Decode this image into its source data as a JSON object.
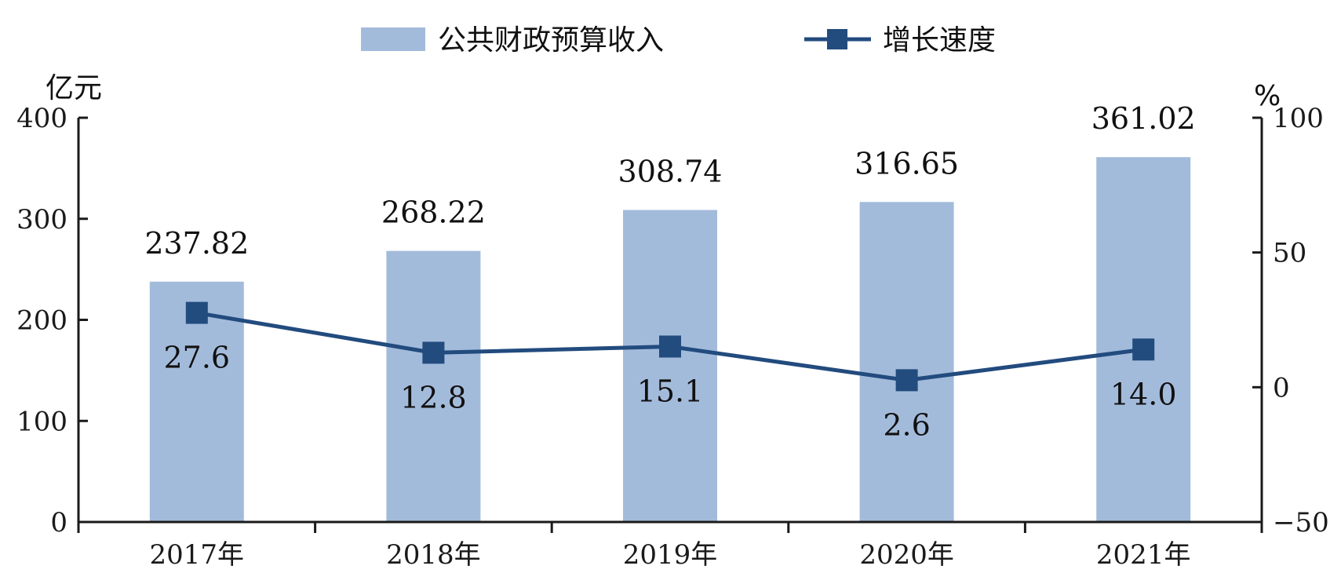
{
  "chart_data": {
    "type": "bar",
    "categories": [
      "2017年",
      "2018年",
      "2019年",
      "2020年",
      "2021年"
    ],
    "series": [
      {
        "name": "公共财政预算收入",
        "type": "bar",
        "axis": "left",
        "values": [
          237.82,
          268.22,
          308.74,
          316.65,
          361.02
        ],
        "labels": [
          "237.82",
          "268.22",
          "308.74",
          "316.65",
          "361.02"
        ],
        "color": "#a3bbdb"
      },
      {
        "name": "增长速度",
        "type": "line",
        "axis": "right",
        "values": [
          27.6,
          12.8,
          15.1,
          2.6,
          14.0
        ],
        "labels": [
          "27.6",
          "12.8",
          "15.1",
          "2.6",
          "14.0"
        ],
        "color": "#224b7e"
      }
    ],
    "y_left": {
      "unit": "亿元",
      "range": [
        0,
        400
      ],
      "ticks": [
        "0",
        "100",
        "200",
        "300",
        "400"
      ]
    },
    "y_right": {
      "unit": "%",
      "range": [
        -50,
        100
      ],
      "ticks": [
        "-50",
        "0",
        "50",
        "100"
      ]
    },
    "legend_position": "top",
    "grid": false
  }
}
